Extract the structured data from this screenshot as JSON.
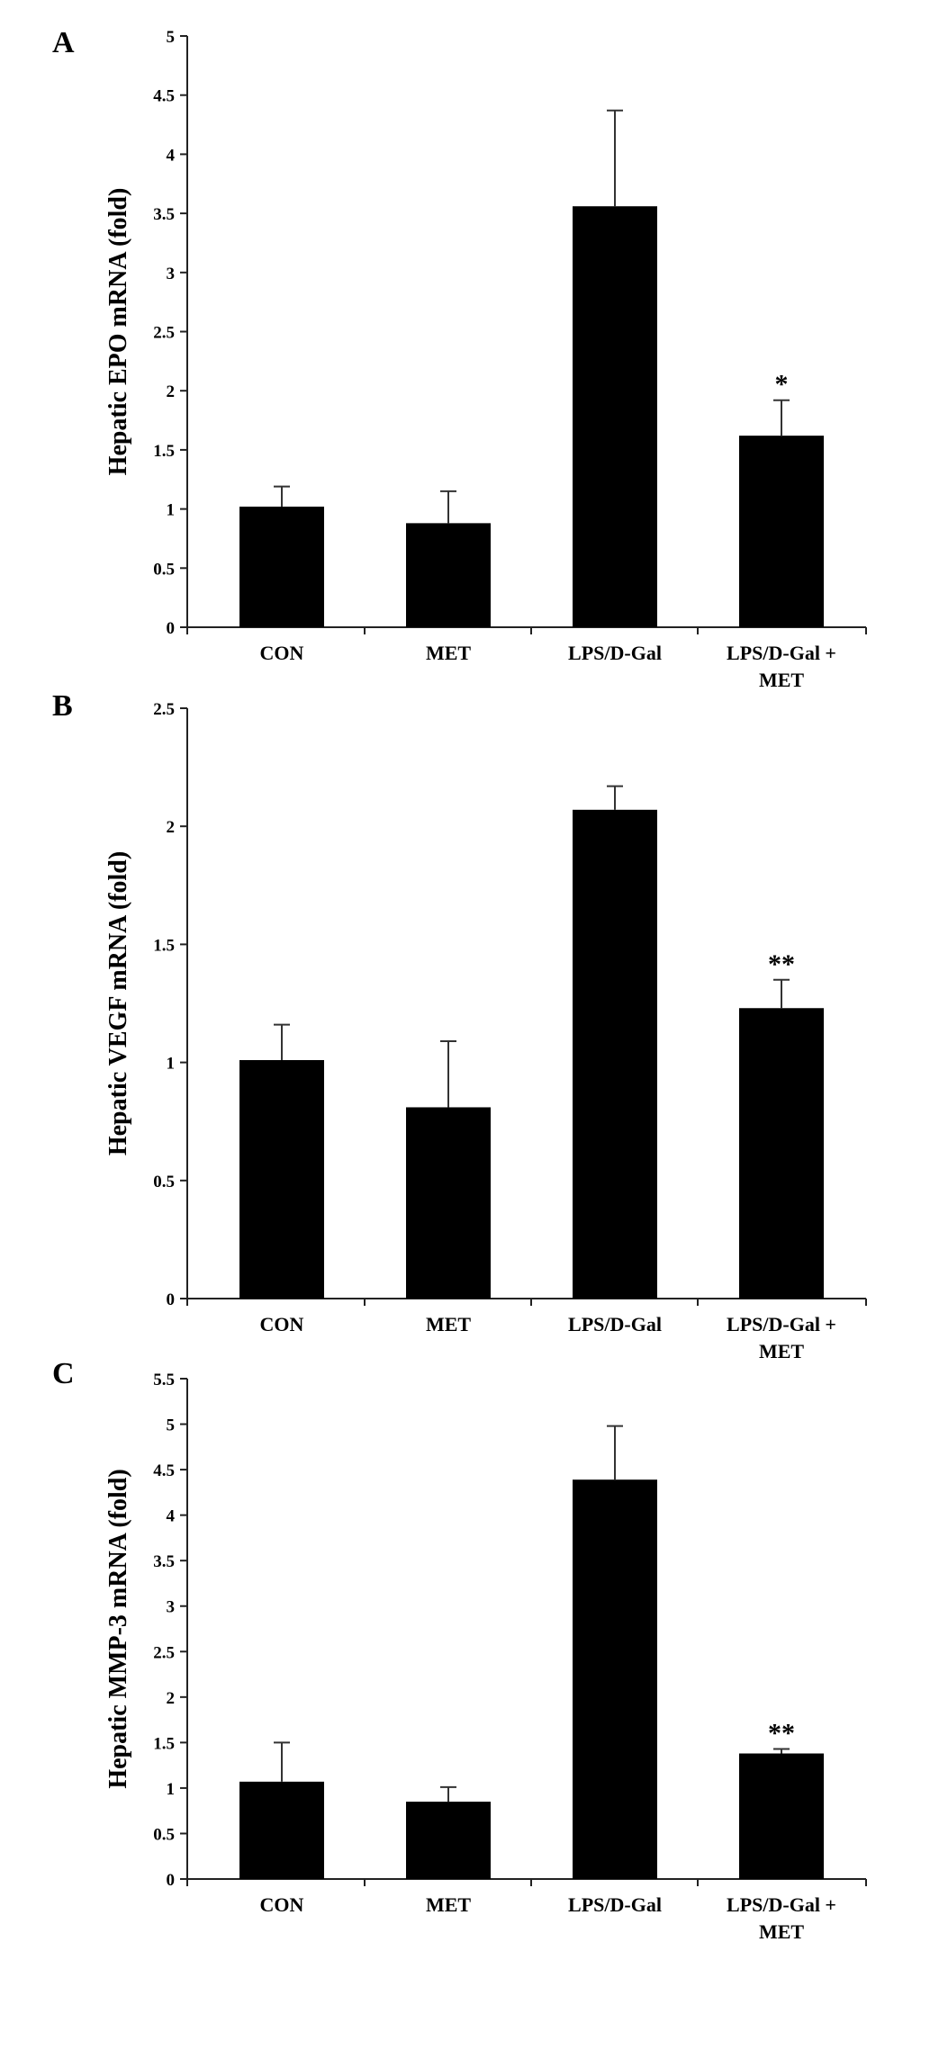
{
  "chart_data": [
    {
      "panel": "A",
      "type": "bar",
      "ylabel": "Hepatic EPO mRNA (fold)",
      "categories": [
        [
          "CON"
        ],
        [
          "MET"
        ],
        [
          "LPS/D-Gal"
        ],
        [
          "LPS/D-Gal +",
          "MET"
        ]
      ],
      "values": [
        1.02,
        0.88,
        3.56,
        1.62
      ],
      "errors": [
        0.17,
        0.27,
        0.81,
        0.3
      ],
      "annotations": [
        "",
        "",
        "",
        "*"
      ],
      "ylim": [
        0,
        5
      ],
      "yticks": [
        0,
        0.5,
        1,
        1.5,
        2,
        2.5,
        3,
        3.5,
        4,
        4.5,
        5
      ],
      "ytick_labels": [
        "0",
        "0.5",
        "1",
        "1.5",
        "2",
        "2.5",
        "3",
        "3.5",
        "4",
        "4.5",
        "5"
      ],
      "bar_color": "#000000",
      "grid": false
    },
    {
      "panel": "B",
      "type": "bar",
      "ylabel": "Hepatic VEGF mRNA (fold)",
      "categories": [
        [
          "CON"
        ],
        [
          "MET"
        ],
        [
          "LPS/D-Gal"
        ],
        [
          "LPS/D-Gal +",
          "MET"
        ]
      ],
      "values": [
        1.01,
        0.81,
        2.07,
        1.23
      ],
      "errors": [
        0.15,
        0.28,
        0.1,
        0.12
      ],
      "annotations": [
        "",
        "",
        "",
        "**"
      ],
      "ylim": [
        0,
        2.5
      ],
      "yticks": [
        0,
        0.5,
        1,
        1.5,
        2,
        2.5
      ],
      "ytick_labels": [
        "0",
        "0.5",
        "1",
        "1.5",
        "2",
        "2.5"
      ],
      "bar_color": "#000000",
      "grid": false
    },
    {
      "panel": "C",
      "type": "bar",
      "ylabel": "Hepatic MMP-3 mRNA (fold)",
      "categories": [
        [
          "CON"
        ],
        [
          "MET"
        ],
        [
          "LPS/D-Gal"
        ],
        [
          "LPS/D-Gal +",
          "MET"
        ]
      ],
      "values": [
        1.07,
        0.85,
        4.39,
        1.38
      ],
      "errors": [
        0.43,
        0.16,
        0.59,
        0.05
      ],
      "annotations": [
        "",
        "",
        "",
        "**"
      ],
      "ylim": [
        0,
        5.5
      ],
      "yticks": [
        0,
        0.5,
        1,
        1.5,
        2,
        2.5,
        3,
        3.5,
        4,
        4.5,
        5,
        5.5
      ],
      "ytick_labels": [
        "0",
        "0.5",
        "1",
        "1.5",
        "2",
        "2.5",
        "3",
        "3.5",
        "4",
        "4.5",
        "5",
        "5.5"
      ],
      "bar_color": "#000000",
      "grid": false
    }
  ]
}
